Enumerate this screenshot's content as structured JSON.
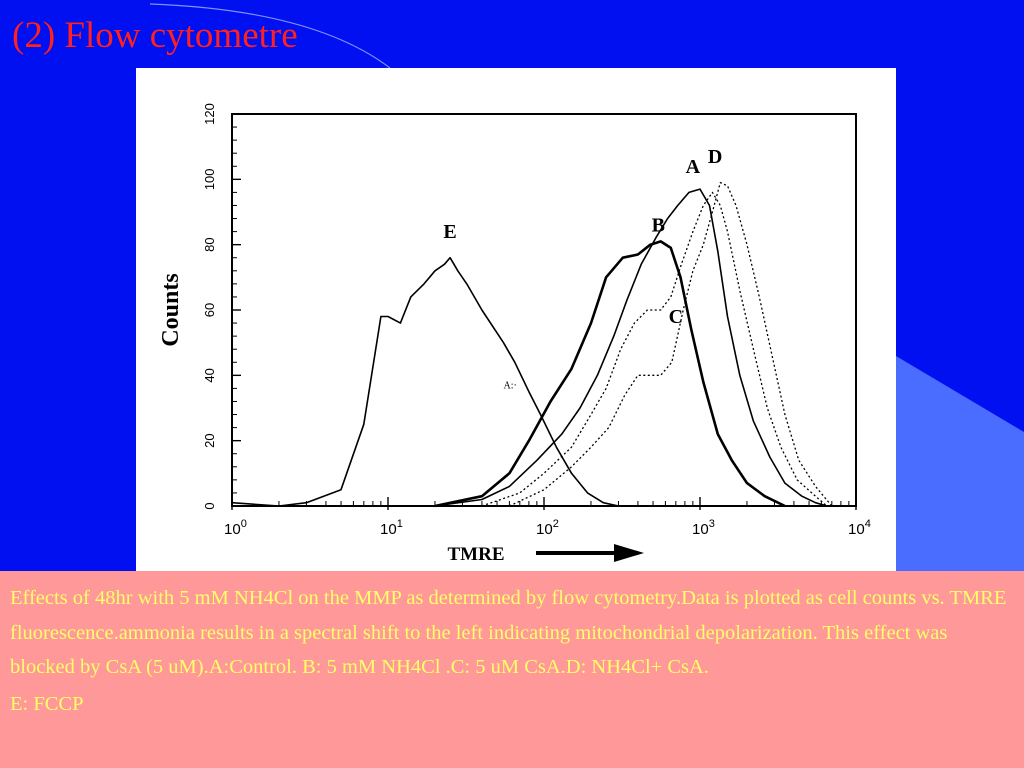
{
  "slide": {
    "title": "(2) Flow cytometre",
    "colors": {
      "background": "#0010f0",
      "title": "#ff2020",
      "caption_bg": "#ff9999",
      "caption_text": "#ffff66",
      "accent_shape": "#4a6cff"
    }
  },
  "caption": {
    "paragraph1": "Effects of  48hr with 5 mM NH4Cl on the MMP  as determined by flow cytometry.Data is plotted as cell counts vs. TMRE  fluorescence.ammonia results in a spectral shift to the left indicating mitochondrial depolarization. This effect was blocked by CsA (5 uM).A:Control. B: 5 mM NH4Cl .C: 5 uM CsA.D: NH4Cl+ CsA.",
    "paragraph2": "E: FCCP"
  },
  "chart_data": {
    "type": "line",
    "title": "",
    "xlabel": "TMRE",
    "ylabel": "Counts",
    "x_scale": "log",
    "xlim": [
      1,
      10000
    ],
    "ylim": [
      0,
      120
    ],
    "x_ticks": [
      1,
      10,
      100,
      1000,
      10000
    ],
    "x_tick_labels": [
      {
        "base": "10",
        "exp": "0"
      },
      {
        "base": "10",
        "exp": "1"
      },
      {
        "base": "10",
        "exp": "2"
      },
      {
        "base": "10",
        "exp": "3"
      },
      {
        "base": "10",
        "exp": "4"
      }
    ],
    "y_ticks": [
      0,
      20,
      40,
      60,
      80,
      100,
      120
    ],
    "y_tick_labels": [
      "0",
      "20",
      "40",
      "60",
      "80",
      "100",
      "120"
    ],
    "grid": false,
    "legend": "none",
    "inline_marker": "A:·",
    "series": [
      {
        "name": "A",
        "style": "solid-thin",
        "points": [
          [
            20,
            0
          ],
          [
            40,
            2
          ],
          [
            60,
            6
          ],
          [
            90,
            14
          ],
          [
            130,
            22
          ],
          [
            170,
            30
          ],
          [
            220,
            40
          ],
          [
            280,
            52
          ],
          [
            340,
            63
          ],
          [
            420,
            74
          ],
          [
            520,
            82
          ],
          [
            620,
            88
          ],
          [
            720,
            92
          ],
          [
            850,
            96
          ],
          [
            1000,
            97
          ],
          [
            1150,
            92
          ],
          [
            1300,
            78
          ],
          [
            1500,
            58
          ],
          [
            1800,
            40
          ],
          [
            2200,
            26
          ],
          [
            2800,
            15
          ],
          [
            3500,
            7
          ],
          [
            4500,
            3
          ],
          [
            5500,
            1
          ],
          [
            6500,
            0
          ]
        ]
      },
      {
        "name": "B",
        "style": "solid-bold",
        "points": [
          [
            20,
            0
          ],
          [
            40,
            3
          ],
          [
            60,
            10
          ],
          [
            80,
            20
          ],
          [
            110,
            32
          ],
          [
            150,
            42
          ],
          [
            200,
            56
          ],
          [
            250,
            70
          ],
          [
            320,
            76
          ],
          [
            400,
            77
          ],
          [
            480,
            80
          ],
          [
            560,
            81
          ],
          [
            650,
            79
          ],
          [
            750,
            70
          ],
          [
            880,
            54
          ],
          [
            1050,
            38
          ],
          [
            1300,
            22
          ],
          [
            1600,
            14
          ],
          [
            2000,
            7
          ],
          [
            2600,
            3
          ],
          [
            3500,
            0
          ]
        ]
      },
      {
        "name": "C",
        "style": "dotted",
        "points": [
          [
            40,
            0
          ],
          [
            70,
            4
          ],
          [
            100,
            10
          ],
          [
            150,
            18
          ],
          [
            200,
            28
          ],
          [
            250,
            36
          ],
          [
            310,
            48
          ],
          [
            380,
            56
          ],
          [
            460,
            60
          ],
          [
            560,
            60
          ],
          [
            650,
            64
          ],
          [
            760,
            74
          ],
          [
            900,
            84
          ],
          [
            1050,
            92
          ],
          [
            1200,
            96
          ],
          [
            1350,
            92
          ],
          [
            1500,
            84
          ],
          [
            1800,
            66
          ],
          [
            2200,
            48
          ],
          [
            2700,
            30
          ],
          [
            3300,
            18
          ],
          [
            4200,
            8
          ],
          [
            5500,
            3
          ],
          [
            6500,
            0
          ]
        ]
      },
      {
        "name": "D",
        "style": "dotted",
        "points": [
          [
            60,
            0
          ],
          [
            100,
            5
          ],
          [
            150,
            12
          ],
          [
            200,
            18
          ],
          [
            260,
            24
          ],
          [
            330,
            34
          ],
          [
            400,
            40
          ],
          [
            480,
            40
          ],
          [
            560,
            40
          ],
          [
            660,
            44
          ],
          [
            780,
            60
          ],
          [
            900,
            72
          ],
          [
            1050,
            80
          ],
          [
            1200,
            90
          ],
          [
            1350,
            99
          ],
          [
            1500,
            98
          ],
          [
            1700,
            92
          ],
          [
            2000,
            80
          ],
          [
            2400,
            64
          ],
          [
            2900,
            46
          ],
          [
            3500,
            28
          ],
          [
            4300,
            14
          ],
          [
            5500,
            6
          ],
          [
            7000,
            0
          ]
        ]
      },
      {
        "name": "E",
        "style": "solid-thin",
        "points": [
          [
            1,
            1
          ],
          [
            2,
            0
          ],
          [
            3,
            1
          ],
          [
            5,
            5
          ],
          [
            7,
            25
          ],
          [
            9,
            58
          ],
          [
            10,
            58
          ],
          [
            12,
            56
          ],
          [
            14,
            64
          ],
          [
            17,
            68
          ],
          [
            20,
            72
          ],
          [
            23,
            74
          ],
          [
            25,
            76
          ],
          [
            28,
            72
          ],
          [
            32,
            68
          ],
          [
            40,
            60
          ],
          [
            55,
            50
          ],
          [
            65,
            44
          ],
          [
            80,
            35
          ],
          [
            95,
            28
          ],
          [
            120,
            18
          ],
          [
            150,
            10
          ],
          [
            190,
            4
          ],
          [
            240,
            1
          ],
          [
            300,
            0
          ]
        ]
      }
    ],
    "series_labels": [
      {
        "text": "A",
        "x": 900,
        "y": 102
      },
      {
        "text": "B",
        "x": 540,
        "y": 84
      },
      {
        "text": "C",
        "x": 700,
        "y": 56
      },
      {
        "text": "D",
        "x": 1250,
        "y": 105
      },
      {
        "text": "E",
        "x": 25,
        "y": 82
      }
    ]
  }
}
